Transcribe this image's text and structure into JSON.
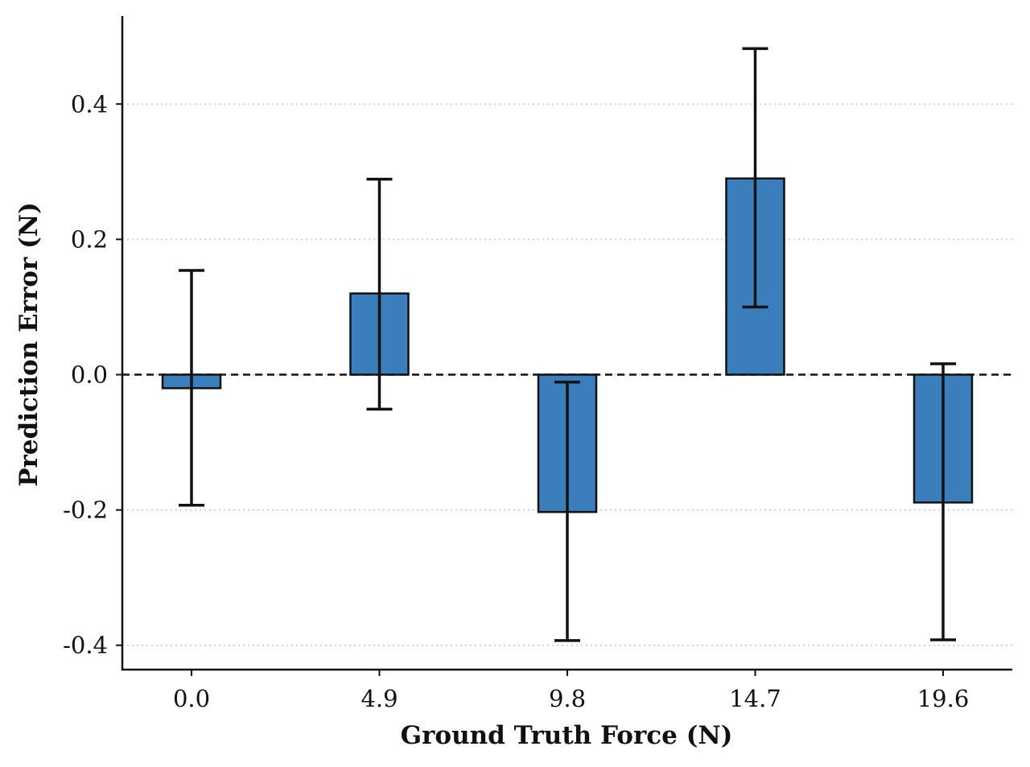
{
  "chart_data": {
    "type": "bar",
    "categories": [
      "0.0",
      "4.9",
      "9.8",
      "14.7",
      "19.6"
    ],
    "values": [
      -0.02,
      0.12,
      -0.203,
      0.29,
      -0.189
    ],
    "error_lower": [
      -0.193,
      -0.051,
      -0.393,
      0.1,
      -0.392
    ],
    "error_upper": [
      0.154,
      0.289,
      -0.011,
      0.482,
      0.016
    ],
    "title": "",
    "xlabel": "Ground Truth Force (N)",
    "ylabel": "Prediction Error (N)",
    "ylim": [
      -0.436,
      0.53
    ],
    "yticks": [
      0.4,
      0.2,
      0.0,
      -0.2,
      -0.4
    ],
    "ytick_labels": [
      "0.4",
      "0.2",
      "0.0",
      "-0.2",
      "-0.4"
    ],
    "reference_line": 0.0,
    "grid": "y-dotted",
    "bar_color": "#3a7ebb",
    "edge_color": "#111111"
  }
}
